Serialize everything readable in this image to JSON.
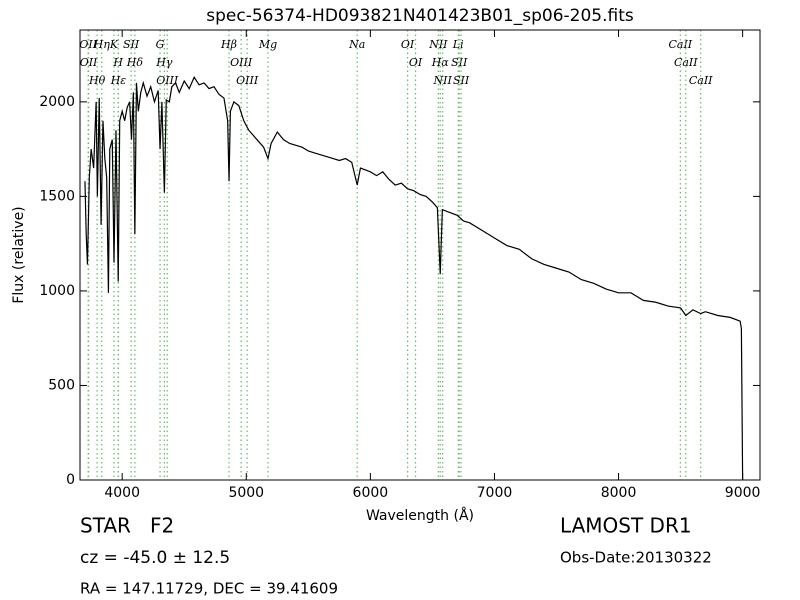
{
  "chart_data": {
    "type": "line",
    "title": "spec-56374-HD093821N401423B01_sp06-205.fits",
    "x_label": "Wavelength (Å)",
    "y_label": "Flux (relative)",
    "xlim": [
      3660,
      9140
    ],
    "ylim": [
      0,
      2380
    ],
    "xticks": [
      4000,
      5000,
      6000,
      7000,
      8000,
      9000
    ],
    "yticks": [
      0,
      500,
      1000,
      1500,
      2000
    ],
    "grid": false,
    "series": [
      {
        "name": "flux",
        "color": "#000000",
        "x": [
          3700,
          3710,
          3720,
          3735,
          3750,
          3770,
          3790,
          3800,
          3815,
          3830,
          3845,
          3860,
          3875,
          3889,
          3900,
          3920,
          3934,
          3950,
          3968,
          3980,
          4000,
          4020,
          4040,
          4060,
          4075,
          4090,
          4102,
          4115,
          4130,
          4150,
          4170,
          4200,
          4230,
          4260,
          4290,
          4305,
          4320,
          4340,
          4355,
          4380,
          4400,
          4430,
          4460,
          4500,
          4540,
          4580,
          4620,
          4660,
          4700,
          4740,
          4780,
          4820,
          4850,
          4861,
          4872,
          4900,
          4940,
          4980,
          5020,
          5060,
          5100,
          5140,
          5175,
          5200,
          5250,
          5300,
          5350,
          5400,
          5450,
          5500,
          5550,
          5600,
          5650,
          5700,
          5750,
          5800,
          5850,
          5894,
          5920,
          6000,
          6050,
          6100,
          6150,
          6200,
          6250,
          6300,
          6350,
          6400,
          6450,
          6500,
          6540,
          6563,
          6580,
          6620,
          6700,
          6750,
          6800,
          6900,
          7000,
          7100,
          7200,
          7300,
          7400,
          7500,
          7600,
          7700,
          7800,
          7900,
          8000,
          8100,
          8200,
          8300,
          8400,
          8500,
          8542,
          8600,
          8662,
          8700,
          8800,
          8900,
          8980,
          8990,
          9000
        ],
        "values": [
          1580,
          1300,
          1140,
          1600,
          1750,
          1650,
          2000,
          1500,
          2020,
          1350,
          1900,
          1700,
          1600,
          990,
          1750,
          1800,
          1150,
          1850,
          1050,
          1900,
          1950,
          1900,
          1970,
          2000,
          1800,
          2050,
          1300,
          2100,
          1950,
          2050,
          2100,
          2030,
          2080,
          2000,
          2060,
          1750,
          2000,
          1520,
          2010,
          2000,
          2080,
          2100,
          2050,
          2110,
          2070,
          2130,
          2090,
          2100,
          2070,
          2080,
          2040,
          2020,
          1900,
          1580,
          1950,
          2000,
          1980,
          1900,
          1850,
          1820,
          1790,
          1760,
          1700,
          1780,
          1840,
          1800,
          1780,
          1770,
          1760,
          1740,
          1730,
          1720,
          1710,
          1700,
          1690,
          1700,
          1680,
          1560,
          1650,
          1630,
          1610,
          1630,
          1590,
          1560,
          1570,
          1540,
          1530,
          1510,
          1500,
          1470,
          1440,
          1090,
          1430,
          1420,
          1400,
          1370,
          1360,
          1320,
          1280,
          1240,
          1220,
          1170,
          1140,
          1120,
          1100,
          1060,
          1040,
          1010,
          990,
          990,
          950,
          940,
          920,
          910,
          870,
          900,
          880,
          890,
          870,
          860,
          840,
          800,
          0
        ]
      }
    ],
    "line_marker_color": "#66bb66",
    "lines": [
      {
        "label": "Hθ",
        "x": 3798
      },
      {
        "label": "OII",
        "x": 3726
      },
      {
        "label": "OII",
        "x": 3729
      },
      {
        "label": "Hη",
        "x": 3835
      },
      {
        "label": "K",
        "x": 3934
      },
      {
        "label": "Hε",
        "x": 3970
      },
      {
        "label": "H",
        "x": 3968
      },
      {
        "label": "SII",
        "x": 4072
      },
      {
        "label": "Hδ",
        "x": 4102
      },
      {
        "label": "G",
        "x": 4305
      },
      {
        "label": "Hγ",
        "x": 4340
      },
      {
        "label": "OIII",
        "x": 4363
      },
      {
        "label": "Hβ",
        "x": 4861
      },
      {
        "label": "OIII",
        "x": 4959
      },
      {
        "label": "OIII",
        "x": 5007
      },
      {
        "label": "Mg",
        "x": 5175
      },
      {
        "label": "Na",
        "x": 5894
      },
      {
        "label": "OI",
        "x": 6300
      },
      {
        "label": "OI",
        "x": 6364
      },
      {
        "label": "Hα",
        "x": 6563
      },
      {
        "label": "NII",
        "x": 6548
      },
      {
        "label": "NII",
        "x": 6583
      },
      {
        "label": "SII",
        "x": 6716
      },
      {
        "label": "Li",
        "x": 6708
      },
      {
        "label": "SII",
        "x": 6731
      },
      {
        "label": "CaII",
        "x": 8542
      },
      {
        "label": "CaII",
        "x": 8498
      },
      {
        "label": "CaII",
        "x": 8662
      }
    ]
  },
  "annotations": {
    "class": "STAR   F2",
    "cz": "cz = -45.0 ± 12.5",
    "coords": "RA = 147.11729, DEC = 39.41609",
    "survey": "LAMOST DR1",
    "obs_date": "Obs-Date:20130322"
  }
}
